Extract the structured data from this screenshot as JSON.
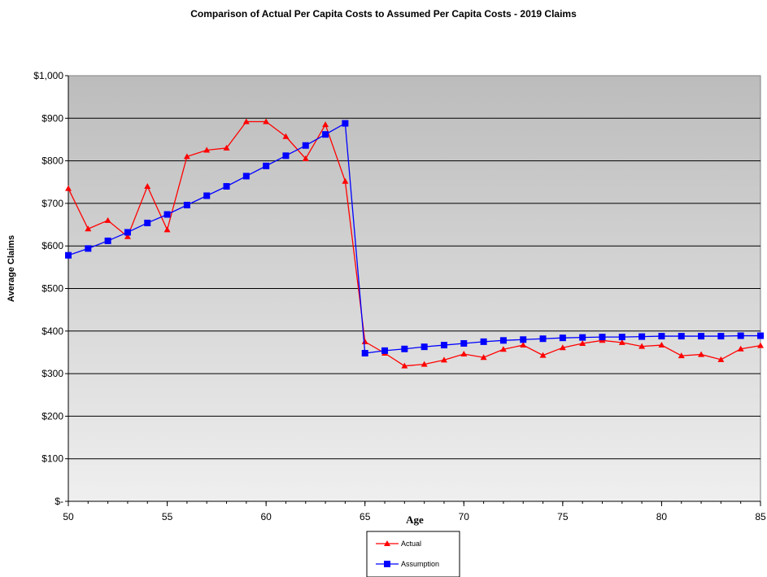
{
  "chart_data": {
    "type": "line",
    "title": "Comparison of Actual Per Capita Costs to Assumed Per Capita Costs - 2019 Claims",
    "xlabel": "Age",
    "ylabel": "Average Claims",
    "xlim": [
      50,
      85
    ],
    "ylim": [
      0,
      1000
    ],
    "x_ticks": [
      50,
      55,
      60,
      65,
      70,
      75,
      80,
      85
    ],
    "y_ticks": [
      0,
      100,
      200,
      300,
      400,
      500,
      600,
      700,
      800,
      900,
      1000
    ],
    "y_tick_labels": [
      "$-",
      "$100",
      "$200",
      "$300",
      "$400",
      "$500",
      "$600",
      "$700",
      "$800",
      "$900",
      "$1,000"
    ],
    "grid": "horizontal",
    "legend_position": "bottom",
    "x": [
      50,
      51,
      52,
      53,
      54,
      55,
      56,
      57,
      58,
      59,
      60,
      61,
      62,
      63,
      64,
      65,
      66,
      67,
      68,
      69,
      70,
      71,
      72,
      73,
      74,
      75,
      76,
      77,
      78,
      79,
      80,
      81,
      82,
      83,
      84,
      85
    ],
    "series": [
      {
        "name": "Actual",
        "color": "#ff0000",
        "marker": "triangle",
        "values": [
          735,
          640,
          660,
          622,
          740,
          638,
          810,
          825,
          830,
          892,
          892,
          857,
          805,
          885,
          752,
          375,
          348,
          318,
          322,
          332,
          346,
          338,
          357,
          367,
          343,
          361,
          371,
          378,
          373,
          364,
          367,
          342,
          345,
          333,
          358,
          366
        ]
      },
      {
        "name": "Assumption",
        "color": "#0000ff",
        "marker": "square",
        "values": [
          578,
          594,
          612,
          632,
          654,
          674,
          696,
          718,
          740,
          764,
          788,
          812,
          836,
          862,
          888,
          348,
          354,
          358,
          363,
          367,
          371,
          375,
          378,
          380,
          382,
          384,
          385,
          386,
          386,
          387,
          388,
          388,
          388,
          388,
          389,
          389
        ]
      }
    ]
  }
}
